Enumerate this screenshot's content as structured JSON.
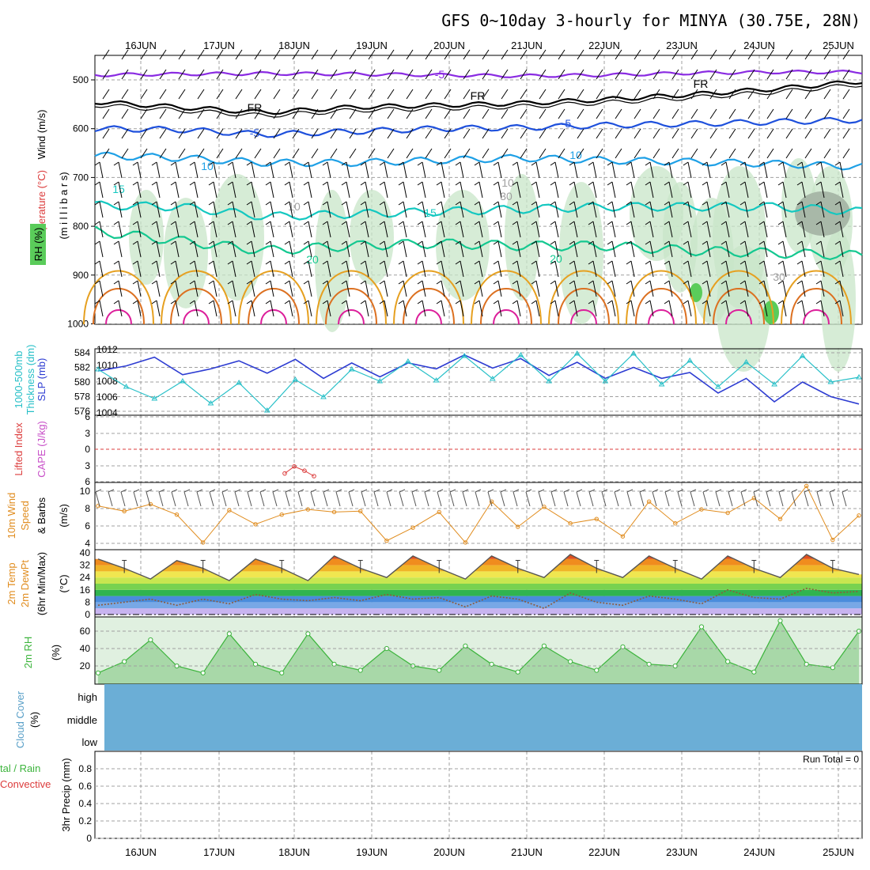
{
  "title": "GFS 0~10day 3-hourly for MINYA (30.75E, 28N)",
  "days": [
    "16JUN",
    "17JUN",
    "18JUN",
    "19JUN",
    "20JUN",
    "21JUN",
    "22JUN",
    "23JUN",
    "24JUN",
    "25JUN"
  ],
  "colors": {
    "temp_purple": "#8a2be2",
    "freezing": "#000000",
    "temp_blue": "#1e50dc",
    "temp_lightblue": "#1ea0e6",
    "temp_teal": "#14c8c0",
    "temp_green": "#14c890",
    "temp_orange": "#e6a020",
    "temp_darkorange": "#dc7020",
    "temp_magenta": "#dc1e9a",
    "rh_fill": "#c8e6c8",
    "thickness": "#2d3cd2",
    "slp": "#28c0c8",
    "wind10": "#e08c1e",
    "cloud": "#6baed6",
    "rh2m": "#3cb43c",
    "lifted": "#dc3c3c"
  },
  "labels": {
    "wind_ms": "Wind (m/s)",
    "temperature": "Temperature (°C)",
    "millibars": "(m i l l i b a r s)",
    "rh_box": "RH (%)",
    "thickness": "1000-500mb",
    "thickness2": "Thickness (dm)",
    "slp": "SLP (mb)",
    "lifted": "Lifted Index",
    "cape": "CAPE (J/kg)",
    "wind10a": "10m Wind",
    "wind10b": "Speed",
    "wind10c": "& Barbs",
    "wind10d": "(m/s)",
    "temp2a": "2m Temp",
    "temp2b": "2m DewPt",
    "temp2c": "(6hr Min/Max)",
    "temp2d": "(°C)",
    "rh2a": "2m RH",
    "rh2b": "(%)",
    "cloud_a": "Cloud Cover",
    "cloud_b": "(%)",
    "precip_a": "tal / Rain",
    "precip_b": "Convective",
    "precip_c": "3hr Precip (mm)",
    "run_total": "Run Total = 0",
    "cloud_high": "high",
    "cloud_middle": "middle",
    "cloud_low": "low"
  },
  "contour_labels": [
    "-5",
    "FR",
    "FR",
    "FR",
    "-5",
    "-5",
    "10",
    "10",
    "15",
    "15",
    "20",
    "20",
    "10",
    "10",
    "30",
    "30"
  ],
  "chart_data": [
    {
      "type": "line",
      "panel": "upper-air cross section",
      "ylabel": "Wind (m/s) / Temperature (°C) / RH (%)",
      "y_ticks": [
        "500",
        "600",
        "700",
        "800",
        "900",
        "1000"
      ],
      "ylim": [
        1000,
        450
      ],
      "series": [
        {
          "name": "-5",
          "values": [
            490,
            488,
            487,
            488,
            490,
            492,
            490,
            486,
            484,
            484
          ]
        },
        {
          "name": "FR",
          "values": [
            545,
            556,
            567,
            556,
            552,
            548,
            540,
            530,
            518,
            503
          ]
        },
        {
          "name": "-5",
          "values": [
            600,
            602,
            612,
            606,
            600,
            598,
            593,
            590,
            586,
            582
          ]
        },
        {
          "name": "10",
          "values": [
            655,
            660,
            670,
            670,
            665,
            660,
            665,
            668,
            672,
            678
          ]
        },
        {
          "name": "15",
          "values": [
            757,
            760,
            780,
            775,
            770,
            765,
            760,
            760,
            760,
            770
          ]
        },
        {
          "name": "20",
          "values": [
            810,
            830,
            850,
            840,
            835,
            840,
            840,
            850,
            855,
            860
          ]
        }
      ]
    },
    {
      "type": "line",
      "panel": "thickness and slp",
      "left_ticks": [
        "584",
        "582",
        "580",
        "578",
        "576"
      ],
      "left_range": [
        575,
        585
      ],
      "right_ticks": [
        "1012",
        "1010",
        "1008",
        "1006",
        "1004"
      ],
      "right_range": [
        1003,
        1013
      ],
      "series": [
        {
          "name": "1000-500mb Thickness (dm)",
          "values": [
            581.5,
            582.2,
            583.4,
            581,
            581.8,
            582.9,
            581.2,
            583.1,
            580.5,
            582.6,
            580.7,
            582.6,
            581.8,
            583.7,
            581.9,
            583.2,
            580.9,
            582.7,
            580.5,
            582,
            580.5,
            581.3,
            578.5,
            580.5,
            577.3,
            580,
            578,
            577
          ]
        },
        {
          "name": "SLP (mb)",
          "values": [
            1009.5,
            1007.3,
            1005.8,
            1008,
            1005.2,
            1007.8,
            1004.3,
            1008.2,
            1006,
            1009.5,
            1008,
            1010.5,
            1008.1,
            1011.2,
            1008.3,
            1011.3,
            1008,
            1011.5,
            1008,
            1011.5,
            1007.6,
            1010.6,
            1007.3,
            1010.4,
            1007.6,
            1011.2,
            1007.9,
            1008.5
          ]
        }
      ]
    },
    {
      "type": "line",
      "panel": "lifted index",
      "ylabel": "Lifted Index / CAPE (J/kg)",
      "y_ticks": [
        "6",
        "3",
        "0",
        "3",
        "6"
      ],
      "series": [
        {
          "name": "Lifted Index",
          "x": [
            "18JUN",
            "18JUN",
            "18JUN",
            "18JUN"
          ],
          "values": [
            4.5,
            3.2,
            4.0,
            5.0
          ]
        }
      ]
    },
    {
      "type": "line",
      "panel": "10m wind",
      "ylabel": "10m Wind Speed & Barbs (m/s)",
      "y_ticks": [
        "10",
        "8",
        "6",
        "4"
      ],
      "ylim": [
        4,
        10.5
      ],
      "series": [
        {
          "name": "10m Wind",
          "values": [
            8.3,
            7.7,
            8.5,
            7.3,
            4.1,
            7.8,
            6.2,
            7.3,
            7.9,
            7.6,
            7.7,
            4.3,
            5.8,
            7.6,
            4.1,
            8.8,
            5.9,
            8.2,
            6.3,
            6.8,
            4.8,
            8.8,
            6.3,
            7.9,
            7.5,
            9.2,
            6.8,
            10.6,
            4.4,
            7.2
          ]
        }
      ]
    },
    {
      "type": "area",
      "panel": "2m temperature",
      "ylabel": "2m Temp / 2m DewPt (°C)",
      "y_ticks": [
        "40",
        "32",
        "24",
        "16",
        "8",
        "0"
      ],
      "ylim": [
        0,
        40
      ],
      "series": [
        {
          "name": "2m Temp",
          "values": [
            36,
            30,
            23,
            35,
            30,
            22,
            36,
            30,
            22,
            38,
            30,
            24,
            38,
            30,
            23,
            38,
            30,
            24,
            39,
            30,
            24,
            38,
            30,
            23,
            38,
            30,
            24,
            39,
            30,
            26
          ]
        },
        {
          "name": "2m DewPt",
          "values": [
            6,
            8,
            10,
            6,
            10,
            7,
            13,
            10,
            9,
            11,
            9,
            13,
            10,
            11,
            5,
            12,
            10,
            4,
            14,
            8,
            6,
            12,
            10,
            7,
            16,
            11,
            10,
            17,
            14,
            15
          ]
        }
      ]
    },
    {
      "type": "area",
      "panel": "2m RH",
      "ylabel": "2m RH (%)",
      "y_ticks": [
        "60",
        "40",
        "20"
      ],
      "ylim": [
        0,
        75
      ],
      "series": [
        {
          "name": "2m RH",
          "values": [
            12,
            25,
            50,
            20,
            12,
            57,
            22,
            12,
            57,
            22,
            15,
            40,
            20,
            15,
            43,
            22,
            13,
            43,
            25,
            15,
            42,
            22,
            20,
            65,
            25,
            13,
            72,
            22,
            18,
            60
          ]
        }
      ]
    },
    {
      "type": "area",
      "panel": "cloud cover",
      "categories": [
        "high",
        "middle",
        "low"
      ],
      "values": [
        100,
        100,
        100
      ]
    },
    {
      "type": "bar",
      "panel": "3hr precip",
      "ylabel": "3hr Precip (mm)",
      "y_ticks": [
        "0.8",
        "0.6",
        "0.4",
        "0.2",
        "0"
      ],
      "ylim": [
        0,
        1
      ],
      "values": [],
      "annotation": "Run Total = 0"
    }
  ]
}
